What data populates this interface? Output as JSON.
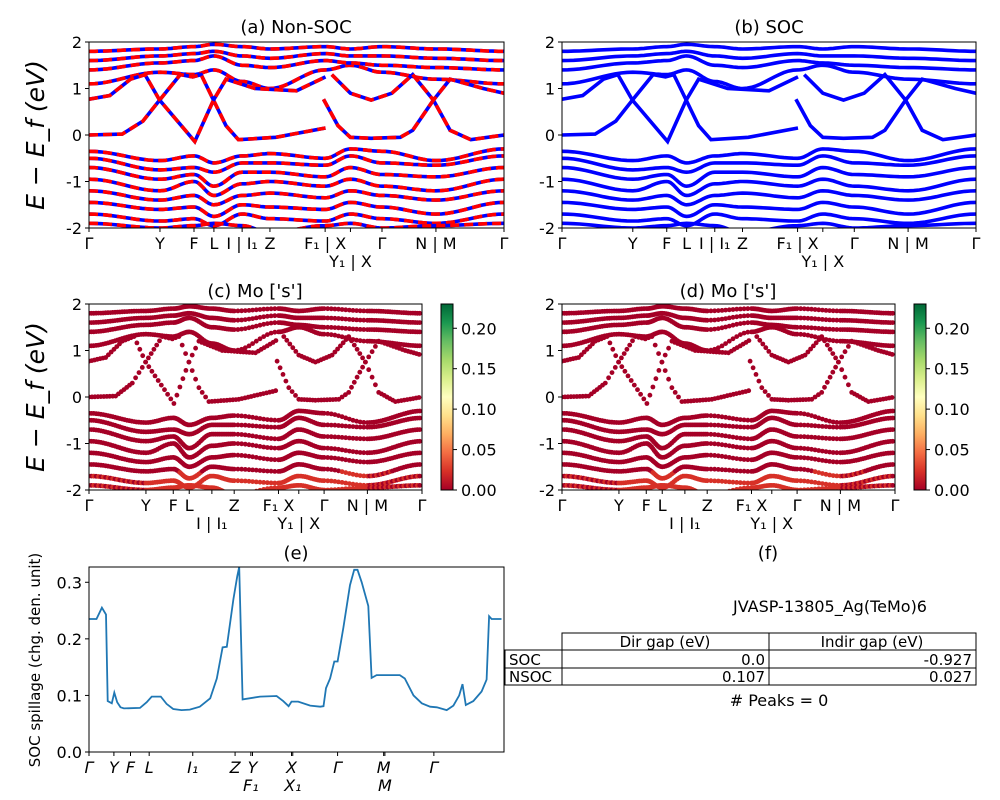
{
  "chart_data": [
    {
      "type": "line",
      "title": "(a) Non-SOC",
      "ylabel": "E − E_f (eV)",
      "ylim": [
        -2,
        2
      ],
      "yticks": [
        -2,
        -1,
        0,
        1,
        2
      ],
      "colors": {
        "line": "#0000ff",
        "dash": "#ff0000"
      },
      "xtick_labels": [
        "Γ",
        "Y",
        "F",
        "L",
        "I | I₁",
        "Z",
        "F₁ | X",
        "Y₁ | X",
        "Γ",
        "N | M",
        "Γ"
      ]
    },
    {
      "type": "line",
      "title": "(b) SOC",
      "ylim": [
        -2,
        2
      ],
      "yticks": [
        -2,
        -1,
        0,
        1,
        2
      ],
      "colors": {
        "line": "#0000ff"
      },
      "xtick_labels": [
        "Γ",
        "Y",
        "F",
        "L",
        "I | I₁",
        "Z",
        "F₁ | X",
        "Y₁ | X",
        "Γ",
        "N | M",
        "Γ"
      ]
    },
    {
      "type": "scatter",
      "title": "(c)  Mo ['s']",
      "ylabel": "E − E_f (eV)",
      "ylim": [
        -2,
        2
      ],
      "yticks": [
        -2,
        -1,
        0,
        1,
        2
      ],
      "colorbar": {
        "range": [
          0,
          0.23
        ],
        "ticks": [
          "0.00",
          "0.05",
          "0.10",
          "0.15",
          "0.20"
        ],
        "colormap": "RdYlGn"
      },
      "xtick_labels": [
        "Γ",
        "Y",
        "F",
        "L",
        "I | I₁",
        "Z",
        "F₁ X",
        "Y₁ | X",
        "Γ",
        "N | M",
        "Γ"
      ]
    },
    {
      "type": "scatter",
      "title": "(d) Mo ['s']",
      "ylim": [
        -2,
        2
      ],
      "yticks": [
        -2,
        -1,
        0,
        1,
        2
      ],
      "colorbar": {
        "range": [
          0,
          0.23
        ],
        "ticks": [
          "0.00",
          "0.05",
          "0.10",
          "0.15",
          "0.20"
        ],
        "colormap": "RdYlGn"
      },
      "xtick_labels": [
        "Γ",
        "Y",
        "F",
        "L",
        "I | I₁",
        "Z",
        "F₁ X",
        "Y₁ | X",
        "Γ",
        "N | M",
        "Γ"
      ]
    },
    {
      "type": "line",
      "title": "(e)",
      "ylabel": "SOC spillage (chg. den. unit)",
      "ylim": [
        0,
        0.327
      ],
      "yticks": [
        "0.0",
        "0.1",
        "0.2",
        "0.3"
      ],
      "color": "#1f77b4",
      "xticks": [
        0,
        0.06,
        0.1,
        0.145,
        0.25,
        0.352,
        0.39,
        0.394,
        0.488,
        0.491,
        0.599,
        0.71,
        0.713,
        0.831
      ],
      "xtick_labels": [
        "Γ",
        "Y",
        "F",
        "L",
        "I₁",
        "Z",
        "F₁",
        "Y",
        "X",
        "X₁",
        "Γ",
        "M",
        "M",
        "Γ"
      ],
      "x": [
        0,
        0.018,
        0.031,
        0.041,
        0.045,
        0.055,
        0.061,
        0.068,
        0.076,
        0.084,
        0.123,
        0.139,
        0.151,
        0.173,
        0.187,
        0.203,
        0.223,
        0.243,
        0.267,
        0.292,
        0.308,
        0.322,
        0.332,
        0.348,
        0.357,
        0.362,
        0.37,
        0.412,
        0.452,
        0.468,
        0.481,
        0.488,
        0.504,
        0.533,
        0.557,
        0.565,
        0.571,
        0.581,
        0.591,
        0.599,
        0.613,
        0.629,
        0.639,
        0.647,
        0.657,
        0.673,
        0.681,
        0.693,
        0.749,
        0.761,
        0.782,
        0.802,
        0.822,
        0.838,
        0.862,
        0.878,
        0.892,
        0.9,
        0.908,
        0.926,
        0.946,
        0.958,
        0.964,
        0.97,
        0.994
      ],
      "y": [
        0.235,
        0.235,
        0.255,
        0.243,
        0.09,
        0.086,
        0.105,
        0.088,
        0.079,
        0.077,
        0.078,
        0.088,
        0.098,
        0.098,
        0.085,
        0.076,
        0.074,
        0.075,
        0.08,
        0.095,
        0.13,
        0.185,
        0.186,
        0.27,
        0.31,
        0.327,
        0.093,
        0.098,
        0.099,
        0.09,
        0.081,
        0.089,
        0.089,
        0.082,
        0.08,
        0.081,
        0.113,
        0.13,
        0.16,
        0.16,
        0.22,
        0.295,
        0.322,
        0.322,
        0.3,
        0.258,
        0.131,
        0.136,
        0.136,
        0.13,
        0.1,
        0.086,
        0.08,
        0.079,
        0.074,
        0.082,
        0.1,
        0.12,
        0.083,
        0.09,
        0.107,
        0.128,
        0.24,
        0.235,
        0.235
      ]
    }
  ],
  "bands": {
    "k_ticks": [
      0,
      0.171,
      0.253,
      0.301,
      0.369,
      0.436,
      0.569,
      0.63,
      0.706,
      0.836,
      1
    ],
    "tick_bands": [
      [
        -0.35,
        -0.55,
        -0.45,
        -0.6,
        -0.45,
        -0.4,
        -0.5,
        -0.3,
        -0.35,
        -0.55,
        -0.3
      ],
      [
        -0.5,
        -0.75,
        -0.7,
        -0.8,
        -0.6,
        -0.6,
        -0.65,
        -0.45,
        -0.6,
        -0.65,
        -0.45
      ],
      [
        -0.7,
        -0.95,
        -0.85,
        -1.1,
        -0.8,
        -0.8,
        -0.9,
        -0.7,
        -0.85,
        -0.9,
        -0.7
      ],
      [
        -0.95,
        -1.2,
        -1.0,
        -1.3,
        -1.05,
        -1.0,
        -1.1,
        -0.95,
        -1.1,
        -1.2,
        -0.95
      ],
      [
        -1.2,
        -1.4,
        -1.3,
        -1.5,
        -1.3,
        -1.25,
        -1.35,
        -1.2,
        -1.3,
        -1.4,
        -1.2
      ],
      [
        -1.45,
        -1.6,
        -1.55,
        -1.75,
        -1.5,
        -1.55,
        -1.6,
        -1.45,
        -1.55,
        -1.7,
        -1.45
      ],
      [
        -1.7,
        -1.85,
        -1.8,
        -1.95,
        -1.7,
        -1.8,
        -1.85,
        -1.7,
        -1.8,
        -1.9,
        -1.7
      ],
      [
        -1.9,
        -2.0,
        -1.95,
        -1.9,
        -1.95,
        -2.1,
        -1.95,
        -1.9,
        -2.0,
        -1.95,
        -1.9
      ],
      [
        1.1,
        1.35,
        1.3,
        1.4,
        1.15,
        1.0,
        1.4,
        1.5,
        1.35,
        1.2,
        1.1
      ],
      [
        1.4,
        1.55,
        1.6,
        1.7,
        1.5,
        1.45,
        1.6,
        1.55,
        1.5,
        1.45,
        1.4
      ],
      [
        1.6,
        1.7,
        1.75,
        1.8,
        1.7,
        1.65,
        1.75,
        1.7,
        1.7,
        1.65,
        1.6
      ],
      [
        1.8,
        1.85,
        1.9,
        1.95,
        1.9,
        1.85,
        1.9,
        1.85,
        1.9,
        1.85,
        1.8
      ]
    ],
    "point_bands": [
      [
        [
          0,
          0.0
        ],
        [
          0.08,
          0.02
        ],
        [
          0.13,
          0.3
        ],
        [
          0.17,
          0.75
        ],
        [
          0.22,
          1.3
        ],
        [
          0.25,
          1.25
        ],
        [
          0.27,
          1.3
        ],
        [
          0.3,
          0.75
        ],
        [
          0.33,
          0.2
        ],
        [
          0.36,
          -0.1
        ],
        [
          0.45,
          -0.05
        ],
        [
          0.57,
          0.15
        ]
      ],
      [
        [
          0,
          0.77
        ],
        [
          0.05,
          0.85
        ],
        [
          0.1,
          1.2
        ],
        [
          0.135,
          1.3
        ],
        [
          0.17,
          0.75
        ],
        [
          0.255,
          -0.14
        ],
        [
          0.3,
          0.75
        ],
        [
          0.33,
          1.2
        ],
        [
          0.4,
          1.0
        ],
        [
          0.5,
          0.95
        ],
        [
          0.57,
          1.25
        ]
      ],
      [
        [
          0.565,
          0.77
        ],
        [
          0.6,
          0.2
        ],
        [
          0.63,
          -0.05
        ],
        [
          0.68,
          -0.07
        ],
        [
          0.75,
          -0.05
        ],
        [
          0.78,
          0.1
        ],
        [
          0.83,
          0.75
        ],
        [
          0.87,
          0.1
        ],
        [
          0.92,
          -0.1
        ],
        [
          1.0,
          0.0
        ]
      ],
      [
        [
          0.585,
          1.3
        ],
        [
          0.63,
          0.9
        ],
        [
          0.68,
          0.75
        ],
        [
          0.73,
          0.9
        ],
        [
          0.78,
          1.3
        ],
        [
          0.83,
          0.75
        ],
        [
          0.87,
          1.2
        ],
        [
          0.95,
          1.0
        ],
        [
          1.0,
          0.9
        ]
      ]
    ]
  },
  "panel_f": {
    "title": "(f)",
    "material": "JVASP-13805_Ag(TeMo)6",
    "table": {
      "headers": [
        "",
        "Dir gap (eV)",
        "Indir gap (eV)"
      ],
      "rows": [
        {
          "label": "SOC",
          "dir": "0.0",
          "indir": "-0.927"
        },
        {
          "label": "NSOC",
          "dir": "0.107",
          "indir": "0.027"
        }
      ]
    },
    "peaks": "# Peaks = 0"
  }
}
